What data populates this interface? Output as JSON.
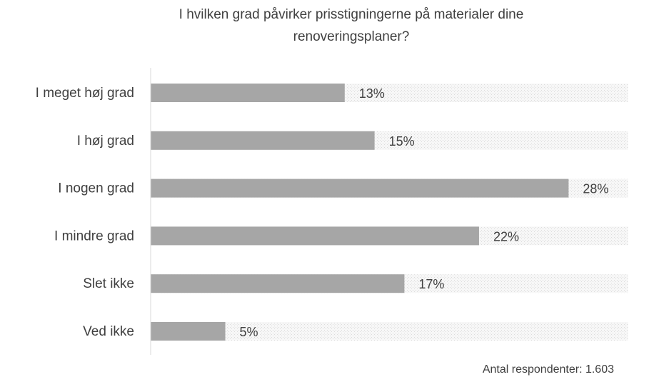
{
  "chart_data": {
    "type": "bar",
    "orientation": "horizontal",
    "title_lines": [
      "I hvilken grad påvirker prisstigningerne på materialer dine",
      "renoveringsplaner?"
    ],
    "categories": [
      "I meget høj grad",
      "I høj grad",
      "I nogen grad",
      "I mindre grad",
      "Slet ikke",
      "Ved ikke"
    ],
    "values": [
      13,
      15,
      28,
      22,
      17,
      5
    ],
    "value_labels": [
      "13%",
      "15%",
      "28%",
      "22%",
      "17%",
      "5%"
    ],
    "xlim": [
      0,
      32
    ],
    "grid": false,
    "legend": "none",
    "footnote": "Antal respondenter: 1.603",
    "colors": {
      "bar": "#a6a6a6",
      "track": "#f0f0f0",
      "text": "#404040",
      "axis": "#d9d9d9"
    }
  }
}
